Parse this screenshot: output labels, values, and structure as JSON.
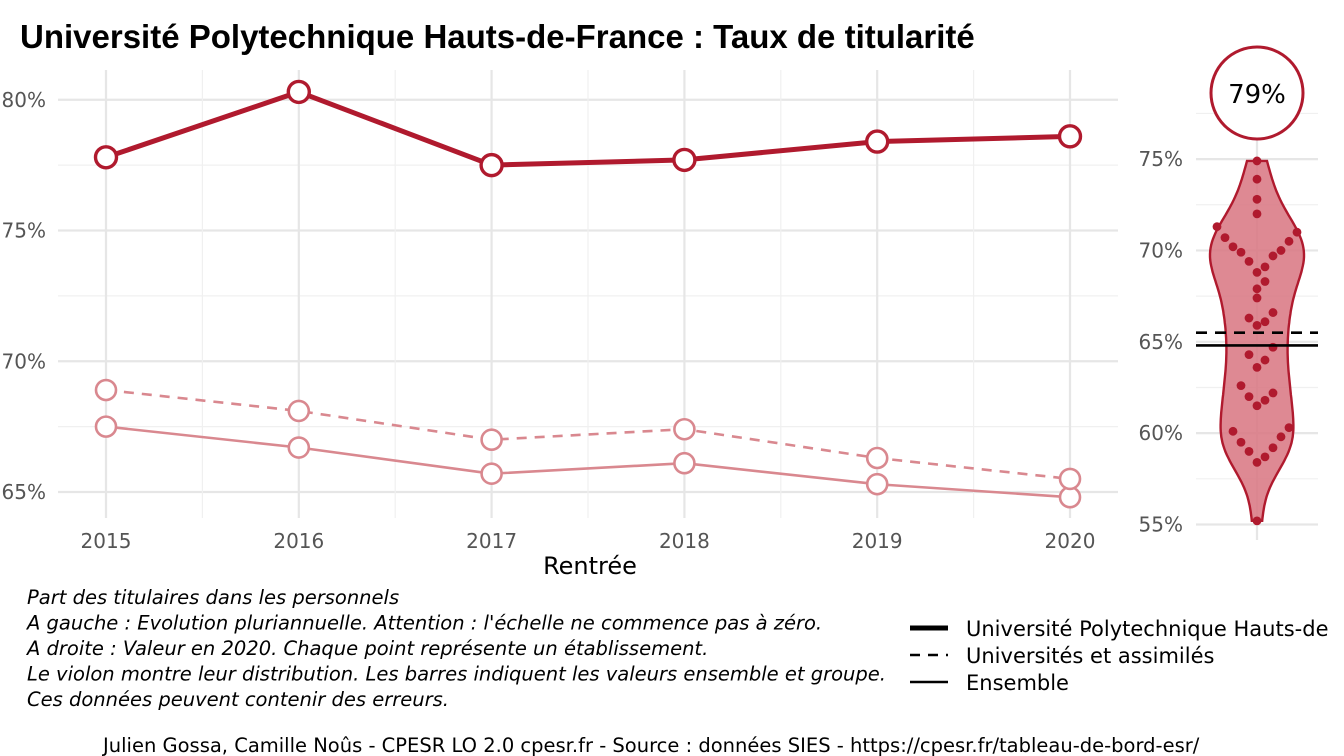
{
  "title": "Université Polytechnique Hauts-de-France  :  Taux de titularité",
  "chart_data": [
    {
      "type": "line",
      "xlabel": "Rentrée",
      "ylabel": "",
      "x": [
        "2015",
        "2016",
        "2017",
        "2018",
        "2019",
        "2020"
      ],
      "ylim": [
        63.5,
        81.5
      ],
      "yticks": [
        65,
        70,
        75,
        80
      ],
      "ytick_labels": [
        "65%",
        "70%",
        "75%",
        "80%"
      ],
      "grid": true,
      "series": [
        {
          "name": "Université Polytechnique Hauts-de",
          "style": "solid-thick",
          "color": "#b01a2e",
          "values": [
            77.8,
            80.3,
            77.5,
            77.7,
            78.4,
            78.6
          ]
        },
        {
          "name": "Universités et assimilés",
          "style": "dashed",
          "color": "#d9888f",
          "values": [
            68.9,
            68.1,
            67.0,
            67.4,
            66.3,
            65.5
          ]
        },
        {
          "name": "Ensemble",
          "style": "solid",
          "color": "#d9888f",
          "values": [
            67.5,
            66.7,
            65.7,
            66.1,
            65.3,
            64.8
          ]
        }
      ]
    },
    {
      "type": "violin",
      "badge": "79%",
      "ylim": [
        54,
        81
      ],
      "yticks": [
        55,
        60,
        65,
        70,
        75
      ],
      "ytick_labels": [
        "55%",
        "60%",
        "65%",
        "70%",
        "75%"
      ],
      "highlight_value": 78.6,
      "reference_lines": {
        "universites": 65.5,
        "ensemble": 64.8
      },
      "points": [
        55.2,
        58.4,
        58.7,
        59.0,
        59.2,
        59.5,
        59.8,
        60.1,
        60.3,
        61.5,
        61.8,
        62.0,
        62.2,
        62.6,
        63.6,
        64.0,
        64.3,
        64.7,
        65.9,
        66.1,
        66.3,
        66.6,
        67.4,
        67.9,
        68.3,
        68.8,
        69.1,
        69.4,
        69.7,
        69.9,
        70.0,
        70.2,
        70.5,
        70.7,
        71.0,
        71.3,
        72.0,
        72.8,
        73.9,
        74.9
      ],
      "fill_color": "#d87480",
      "outline_color": "#b01a2e"
    }
  ],
  "caption_lines": [
    "Part des titulaires dans les personnels",
    "A gauche : Evolution pluriannuelle. Attention : l'échelle ne commence pas à zéro.",
    "A droite : Valeur en 2020. Chaque point représente un établissement.",
    "Le violon montre leur distribution. Les barres indiquent les valeurs ensemble et groupe.",
    "Ces données peuvent contenir des erreurs."
  ],
  "legend": [
    {
      "label": "Université Polytechnique Hauts-de",
      "style": "solid-thick"
    },
    {
      "label": "Universités et assimilés",
      "style": "dashed"
    },
    {
      "label": "Ensemble",
      "style": "solid"
    }
  ],
  "footer": "Julien Gossa, Camille Noûs - CPESR LO 2.0 cpesr.fr - Source : données SIES - https://cpesr.fr/tableau-de-bord-esr/"
}
